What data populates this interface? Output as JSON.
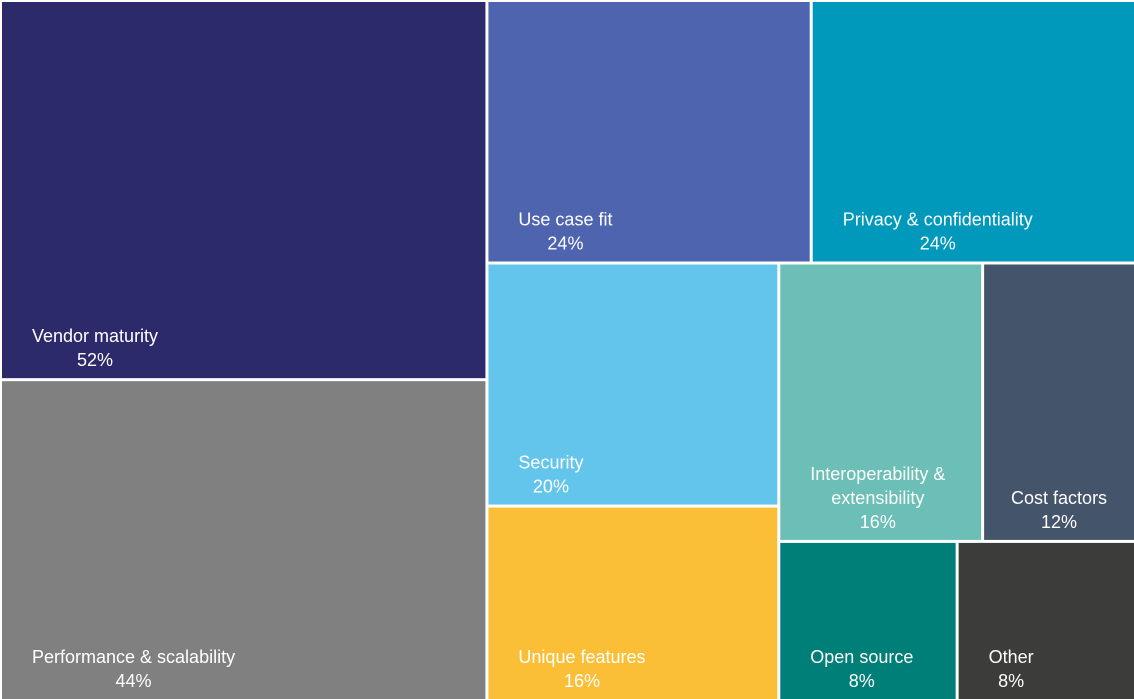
{
  "chart_data": {
    "type": "treemap",
    "categories": [
      "Vendor maturity",
      "Performance & scalability",
      "Use case fit",
      "Privacy & confidentiality",
      "Security",
      "Unique features",
      "Interoperability & extensibility",
      "Cost factors",
      "Open source",
      "Other"
    ],
    "values": [
      52,
      44,
      24,
      24,
      20,
      16,
      16,
      12,
      8,
      8
    ],
    "value_labels": [
      "52%",
      "44%",
      "24%",
      "24%",
      "20%",
      "16%",
      "16%",
      "12%",
      "8%",
      "8%"
    ],
    "colors": [
      "#2d2a6b",
      "#808080",
      "#4f64af",
      "#0098bb",
      "#64c5ec",
      "#fbbf37",
      "#6bbfb6",
      "#44546a",
      "#007f78",
      "#3c3c3b"
    ]
  }
}
